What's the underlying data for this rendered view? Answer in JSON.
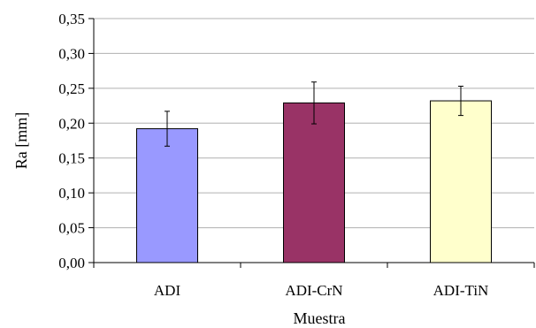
{
  "chart_data": {
    "type": "bar",
    "categories": [
      "ADI",
      "ADI-CrN",
      "ADI-TiN"
    ],
    "values": [
      0.192,
      0.229,
      0.232
    ],
    "errors": [
      0.025,
      0.03,
      0.021
    ],
    "colors": [
      "#9999ff",
      "#993366",
      "#ffffcc"
    ],
    "xlabel": "Muestra",
    "ylabel": "Ra [mm]",
    "ylim": [
      0,
      0.35
    ],
    "yticks": [
      0,
      0.05,
      0.1,
      0.15,
      0.2,
      0.25,
      0.3,
      0.35
    ],
    "ytick_labels": [
      "0,00",
      "0,05",
      "0,10",
      "0,15",
      "0,20",
      "0,25",
      "0,30",
      "0,35"
    ],
    "grid": true,
    "legend": false
  }
}
